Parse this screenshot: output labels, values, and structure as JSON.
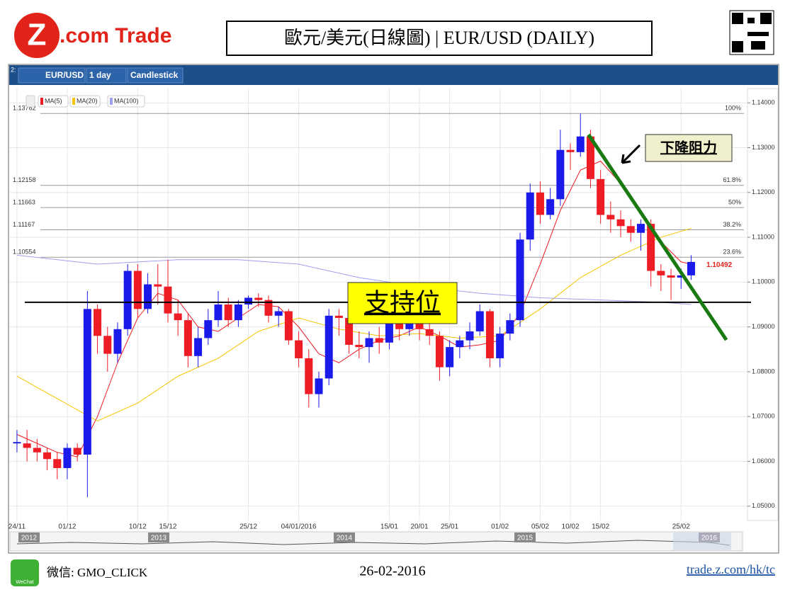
{
  "header": {
    "logo_mark": "Z",
    "logo_text": ".com Trade",
    "title": "歐元/美元(日線圖) | EUR/USD (DAILY)"
  },
  "toolbar": {
    "panel": "2:",
    "symbol": "EUR/USD",
    "interval": "1 day",
    "style": "Candlestick"
  },
  "chart_data": {
    "type": "candlestick",
    "categories": [
      "24/11",
      null,
      null,
      null,
      null,
      "01/12",
      null,
      null,
      null,
      null,
      null,
      null,
      "10/12",
      null,
      null,
      "15/12",
      null,
      null,
      null,
      null,
      null,
      null,
      null,
      "25/12",
      null,
      null,
      null,
      null,
      "04/01/2016",
      null,
      null,
      null,
      null,
      null,
      null,
      null,
      null,
      "15/01",
      null,
      null,
      "20/01",
      null,
      null,
      "25/01",
      null,
      null,
      null,
      null,
      "01/02",
      null,
      null,
      null,
      "05/02",
      null,
      null,
      "10/02",
      null,
      null,
      "15/02",
      null,
      null,
      null,
      null,
      null,
      null,
      null,
      "25/02",
      null
    ],
    "open": [
      1.064,
      1.064,
      1.063,
      1.062,
      1.0605,
      1.0585,
      1.063,
      1.0615,
      1.094,
      1.088,
      1.084,
      1.0895,
      1.1025,
      1.094,
      1.0995,
      1.099,
      1.093,
      1.0915,
      1.0835,
      1.0875,
      1.0915,
      1.095,
      1.0915,
      1.095,
      1.0965,
      1.096,
      1.0925,
      1.0935,
      1.087,
      1.083,
      1.075,
      1.0785,
      1.0925,
      1.092,
      1.086,
      1.0855,
      1.0875,
      1.0865,
      1.091,
      1.0895,
      1.091,
      1.0895,
      1.088,
      1.081,
      1.0855,
      1.087,
      1.089,
      1.0935,
      1.083,
      1.0885,
      1.0915,
      1.1095,
      1.12,
      1.115,
      1.1185,
      1.1295,
      1.129,
      1.1325,
      1.123,
      1.115,
      1.114,
      1.1125,
      1.111,
      1.113,
      1.1025,
      1.1015,
      1.101,
      1.1015
    ],
    "high": [
      1.067,
      1.067,
      1.065,
      1.063,
      1.062,
      1.064,
      1.064,
      1.098,
      1.095,
      1.09,
      1.091,
      1.104,
      1.104,
      1.102,
      1.104,
      1.105,
      1.096,
      1.093,
      1.09,
      1.094,
      1.098,
      1.0965,
      1.096,
      1.097,
      1.0975,
      1.097,
      1.0945,
      1.094,
      1.089,
      1.085,
      1.08,
      1.094,
      1.094,
      1.093,
      1.089,
      1.089,
      1.09,
      1.092,
      1.093,
      1.093,
      1.092,
      1.091,
      1.089,
      1.087,
      1.088,
      1.091,
      1.095,
      1.094,
      1.09,
      1.093,
      1.111,
      1.122,
      1.1225,
      1.121,
      1.134,
      1.131,
      1.1376,
      1.134,
      1.125,
      1.118,
      1.116,
      1.114,
      1.114,
      1.114,
      1.104,
      1.103,
      1.103,
      1.106
    ],
    "low": [
      1.062,
      1.06,
      1.06,
      1.058,
      1.056,
      1.056,
      1.06,
      1.052,
      1.084,
      1.08,
      1.082,
      1.088,
      1.092,
      1.093,
      1.095,
      1.091,
      1.088,
      1.081,
      1.081,
      1.086,
      1.09,
      1.09,
      1.09,
      1.094,
      1.0945,
      1.091,
      1.09,
      1.086,
      1.081,
      1.072,
      1.072,
      1.077,
      1.088,
      1.084,
      1.083,
      1.082,
      1.084,
      1.085,
      1.087,
      1.088,
      1.087,
      1.086,
      1.078,
      1.079,
      1.083,
      1.085,
      1.088,
      1.081,
      1.081,
      1.087,
      1.09,
      1.107,
      1.113,
      1.114,
      1.117,
      1.125,
      1.128,
      1.121,
      1.113,
      1.111,
      1.11,
      1.109,
      1.107,
      1.099,
      1.098,
      1.096,
      1.0985,
      1.1005
    ],
    "close": [
      1.0643,
      1.063,
      1.062,
      1.0605,
      1.0585,
      1.063,
      1.0615,
      1.094,
      1.088,
      1.084,
      1.0895,
      1.1025,
      1.094,
      1.0995,
      1.099,
      1.093,
      1.0915,
      1.0835,
      1.0875,
      1.0915,
      1.095,
      1.0915,
      1.095,
      1.0965,
      1.096,
      1.0925,
      1.0935,
      1.087,
      1.083,
      1.075,
      1.0785,
      1.0925,
      1.092,
      1.086,
      1.0855,
      1.0875,
      1.0865,
      1.091,
      1.0895,
      1.091,
      1.0895,
      1.088,
      1.081,
      1.0855,
      1.087,
      1.089,
      1.0935,
      1.083,
      1.0885,
      1.0915,
      1.1095,
      1.12,
      1.115,
      1.1185,
      1.1295,
      1.129,
      1.1325,
      1.123,
      1.115,
      1.114,
      1.1125,
      1.111,
      1.113,
      1.1025,
      1.1015,
      1.101,
      1.1015,
      1.1045
    ],
    "up_color": "#1a1aeb",
    "down_color": "#ee1c24",
    "xlim": [
      -0.7,
      72.6
    ],
    "ylim": [
      1.0468,
      1.1432
    ],
    "yticks": [
      {
        "value": 1.05,
        "label": "1.05000"
      },
      {
        "value": 1.06,
        "label": "1.06000"
      },
      {
        "value": 1.07,
        "label": "1.07000"
      },
      {
        "value": 1.08,
        "label": "1.08000"
      },
      {
        "value": 1.09,
        "label": "1.09000"
      },
      {
        "value": 1.1,
        "label": "1.10000"
      },
      {
        "value": 1.11,
        "label": "1.11000"
      },
      {
        "value": 1.12,
        "label": "1.12000"
      },
      {
        "value": 1.13,
        "label": "1.13000"
      },
      {
        "value": 1.14,
        "label": "1.14000"
      }
    ],
    "grid": true,
    "series": [
      {
        "name": "MA(5)",
        "color": "#ee1c24",
        "x": [
          0,
          4,
          6,
          8,
          10,
          12,
          14,
          16,
          18,
          20,
          22,
          24,
          26,
          28,
          30,
          32,
          34,
          36,
          38,
          40,
          42,
          44,
          46,
          48,
          50,
          52,
          54,
          56,
          58,
          60,
          62,
          64,
          66,
          67
        ],
        "values": [
          1.066,
          1.062,
          1.061,
          1.07,
          1.082,
          1.092,
          1.0975,
          1.096,
          1.09,
          1.089,
          1.092,
          1.095,
          1.0945,
          1.09,
          1.084,
          1.082,
          1.085,
          1.087,
          1.088,
          1.09,
          1.088,
          1.0855,
          1.086,
          1.087,
          1.093,
          1.104,
          1.116,
          1.125,
          1.127,
          1.122,
          1.115,
          1.109,
          1.1045,
          1.104
        ]
      },
      {
        "name": "MA(20)",
        "color": "#f5c400",
        "x": [
          0,
          4,
          8,
          12,
          16,
          20,
          24,
          28,
          32,
          36,
          40,
          44,
          48,
          52,
          56,
          60,
          64,
          67
        ],
        "values": [
          1.079,
          1.074,
          1.069,
          1.073,
          1.079,
          1.083,
          1.089,
          1.092,
          1.0895,
          1.088,
          1.0885,
          1.0875,
          1.088,
          1.094,
          1.101,
          1.106,
          1.11,
          1.112
        ]
      },
      {
        "name": "MA(100)",
        "color": "#9f9ff0",
        "x": [
          0,
          8,
          16,
          22,
          28,
          34,
          40,
          46,
          52,
          58,
          64,
          67
        ],
        "values": [
          1.106,
          1.104,
          1.105,
          1.105,
          1.104,
          1.101,
          1.099,
          1.0975,
          1.0965,
          1.096,
          1.0955,
          1.095
        ]
      }
    ],
    "fib_levels": [
      {
        "value": 1.13762,
        "label": "100%"
      },
      {
        "value": 1.12158,
        "label": "61.8%"
      },
      {
        "value": 1.11663,
        "label": "50%"
      },
      {
        "value": 1.11167,
        "label": "38.2%"
      },
      {
        "value": 1.10554,
        "label": "23.6%"
      }
    ],
    "current_price": 1.10492,
    "support": {
      "value": 1.0955,
      "label": "支持位"
    },
    "resistance": {
      "label": "下降阻力",
      "color": "#1a7a12",
      "x": [
        56.8,
        70.5
      ],
      "values": [
        1.1329,
        1.0871
      ]
    }
  },
  "navigator": {
    "years": [
      "2012",
      "2013",
      "2014",
      "2015",
      "2016"
    ]
  },
  "footer": {
    "wechat_icon": "WeChat",
    "wechat": "微信: GMO_CLICK",
    "date": "26-02-2016",
    "url": "trade.z.com/hk/tc"
  }
}
